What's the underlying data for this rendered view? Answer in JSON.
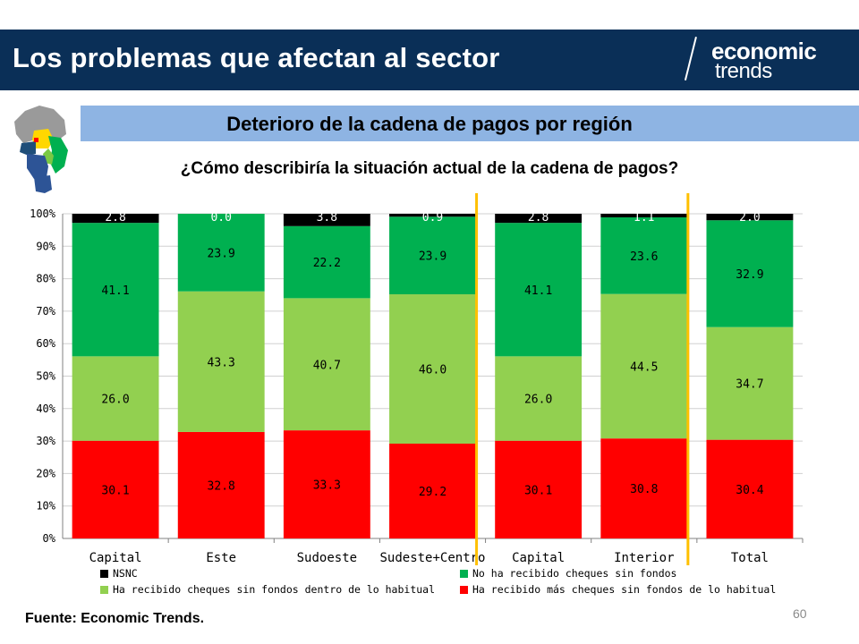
{
  "header": {
    "title": "Los problemas que afectan al sector",
    "logo_line1": "economic",
    "logo_line2": "trends"
  },
  "subtitle": "Deterioro de la cadena de pagos por región",
  "question": "¿Cómo describiría la situación actual de la cadena de pagos?",
  "footer": {
    "source": "Fuente: Economic Trends.",
    "page_number": "60"
  },
  "colors": {
    "header_bg": "#0a2f57",
    "subtitle_bg": "#8eb4e3",
    "separator": "#ffc000"
  },
  "chart_data": {
    "type": "bar",
    "stacked": true,
    "categories": [
      "Capital",
      "Este",
      "Sudoeste",
      "Sudeste+Centro",
      "Capital",
      "Interior",
      "Total"
    ],
    "ylim": [
      0,
      100
    ],
    "yticks": [
      "0%",
      "10%",
      "20%",
      "30%",
      "40%",
      "50%",
      "60%",
      "70%",
      "80%",
      "90%",
      "100%"
    ],
    "separators_after_category": [
      4,
      6
    ],
    "grid": true,
    "series": [
      {
        "name": "Ha recibido más cheques sin fondos de lo habitual",
        "color": "#ff0000",
        "values": [
          30.1,
          32.8,
          33.3,
          29.2,
          30.1,
          30.8,
          30.4
        ],
        "labels": [
          "30.1",
          "32.8",
          "33.3",
          "29.2",
          "30.1",
          "30.8",
          "30.4"
        ]
      },
      {
        "name": "Ha recibido cheques sin fondos dentro de lo habitual",
        "color": "#92d050",
        "values": [
          26.0,
          43.3,
          40.7,
          46.0,
          26.0,
          44.5,
          34.7
        ],
        "labels": [
          "26.0",
          "43.3",
          "40.7",
          "46.0",
          "26.0",
          "44.5",
          "34.7"
        ]
      },
      {
        "name": "No ha recibido cheques sin fondos",
        "color": "#00b050",
        "values": [
          41.1,
          23.9,
          22.2,
          23.9,
          41.1,
          23.6,
          32.9
        ],
        "labels": [
          "41.1",
          "23.9",
          "22.2",
          "23.9",
          "41.1",
          "23.6",
          "32.9"
        ]
      },
      {
        "name": "NSNC",
        "color": "#000000",
        "values": [
          2.8,
          0.0,
          3.8,
          0.9,
          2.8,
          1.1,
          2.0
        ],
        "labels": [
          "2.8",
          "0.0",
          "3.8",
          "0.9",
          "2.8",
          "1.1",
          "2.0"
        ]
      }
    ],
    "legend": [
      {
        "name": "NSNC",
        "color": "#000000"
      },
      {
        "name": "No ha recibido cheques sin fondos",
        "color": "#00b050"
      },
      {
        "name": "Ha recibido cheques sin fondos dentro de lo habitual",
        "color": "#92d050"
      },
      {
        "name": "Ha recibido más cheques sin fondos de lo habitual",
        "color": "#ff0000"
      }
    ],
    "legend_placement": "bottom"
  }
}
